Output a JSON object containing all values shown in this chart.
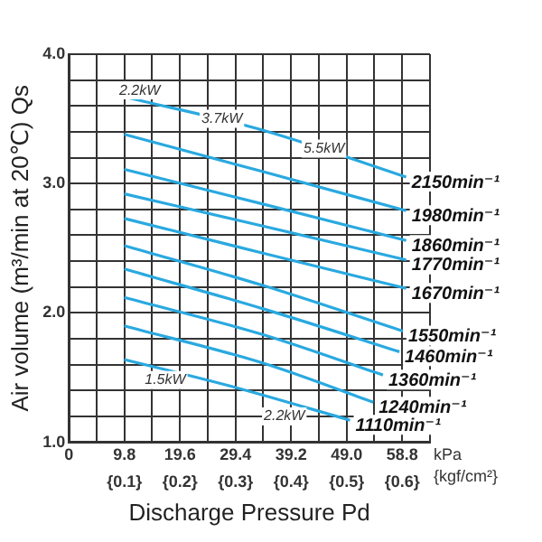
{
  "chart_data": {
    "type": "line",
    "xlabel": "Discharge Pressure Pd",
    "ylabel": "Air volume (m³/min at 20℃) Qs",
    "xlim": [
      0,
      63.7
    ],
    "ylim": [
      1.0,
      4.0
    ],
    "xticks": [
      0,
      {
        "value": 4.9,
        "label": null
      },
      9.8,
      {
        "value": 14.7,
        "label": null
      },
      19.6,
      {
        "value": 24.5,
        "label": null
      },
      29.4,
      {
        "value": 34.3,
        "label": null
      },
      39.2,
      {
        "value": 44.1,
        "label": null
      },
      {
        "value": 49.0,
        "label": "49.0"
      },
      {
        "value": 53.9,
        "label": null
      },
      58.8,
      {
        "value": 63.7,
        "label": null
      }
    ],
    "x2lim": [
      0,
      0.65
    ],
    "x2ticks": [
      {
        "value": 0.1,
        "label": "{0.1}"
      },
      {
        "value": 0.2,
        "label": "{0.2}"
      },
      {
        "value": 0.3,
        "label": "{0.3}"
      },
      {
        "value": 0.4,
        "label": "{0.4}"
      },
      {
        "value": 0.5,
        "label": "{0.5}"
      },
      {
        "value": 0.6,
        "label": "{0.6}"
      }
    ],
    "yticks": [
      {
        "value": 1.0,
        "label": "1.0"
      },
      {
        "value": 1.2,
        "label": null
      },
      {
        "value": 1.4,
        "label": null
      },
      {
        "value": 1.6,
        "label": null
      },
      {
        "value": 1.8,
        "label": null
      },
      {
        "value": 2.0,
        "label": "2.0"
      },
      {
        "value": 2.2,
        "label": null
      },
      {
        "value": 2.4,
        "label": null
      },
      {
        "value": 2.6,
        "label": null
      },
      {
        "value": 2.8,
        "label": null
      },
      {
        "value": 3.0,
        "label": "3.0"
      },
      {
        "value": 3.2,
        "label": null
      },
      {
        "value": 3.4,
        "label": null
      },
      {
        "value": 3.6,
        "label": null
      },
      {
        "value": 3.8,
        "label": null
      },
      {
        "value": 4.0,
        "label": "4.0"
      }
    ],
    "grid": true,
    "legend": false,
    "marker": "none",
    "line_style": "solid",
    "series": [
      {
        "name": "2150min⁻¹",
        "color": "#29a9e0",
        "x": [
          9.8,
          34.4,
          59.5
        ],
        "values": [
          3.67,
          3.41,
          3.05
        ]
      },
      {
        "name": "1980min⁻¹",
        "color": "#29a9e0",
        "x": [
          9.8,
          34.4,
          59.5
        ],
        "values": [
          3.38,
          3.09,
          2.79
        ]
      },
      {
        "name": "1860min⁻¹",
        "color": "#29a9e0",
        "x": [
          9.8,
          34.4,
          59.5
        ],
        "values": [
          3.11,
          2.84,
          2.56
        ]
      },
      {
        "name": "1770min⁻¹",
        "color": "#29a9e0",
        "x": [
          9.8,
          34.4,
          59.5
        ],
        "values": [
          2.92,
          2.67,
          2.41
        ]
      },
      {
        "name": "1670min⁻¹",
        "color": "#29a9e0",
        "x": [
          9.8,
          34.4,
          59.5
        ],
        "values": [
          2.73,
          2.46,
          2.19
        ]
      },
      {
        "name": "1550min⁻¹",
        "color": "#29a9e0",
        "x": [
          9.8,
          34.4,
          58.9
        ],
        "values": [
          2.52,
          2.21,
          1.86
        ]
      },
      {
        "name": "1460min⁻¹",
        "color": "#29a9e0",
        "x": [
          9.8,
          34.4,
          58.3
        ],
        "values": [
          2.34,
          2.03,
          1.7
        ]
      },
      {
        "name": "1360min⁻¹",
        "color": "#29a9e0",
        "x": [
          9.8,
          34.4,
          55.4
        ],
        "values": [
          2.12,
          1.83,
          1.52
        ]
      },
      {
        "name": "1240min⁻¹",
        "color": "#29a9e0",
        "x": [
          9.8,
          34.4,
          53.7
        ],
        "values": [
          1.9,
          1.61,
          1.31
        ]
      },
      {
        "name": "1110min⁻¹",
        "color": "#29a9e0",
        "x": [
          9.8,
          29.7,
          49.6
        ],
        "values": [
          1.64,
          1.42,
          1.17
        ]
      }
    ],
    "annotations": [
      {
        "text": "2.2kW",
        "x": 12.5,
        "y": 3.72
      },
      {
        "text": "3.7kW",
        "x": 27,
        "y": 3.5
      },
      {
        "text": "5.5kW",
        "x": 45,
        "y": 3.27
      },
      {
        "text": "1.5kW",
        "x": 17,
        "y": 1.48
      },
      {
        "text": "2.2kW",
        "x": 38,
        "y": 1.2
      },
      "kPa",
      "{kgf/cm²}"
    ]
  }
}
